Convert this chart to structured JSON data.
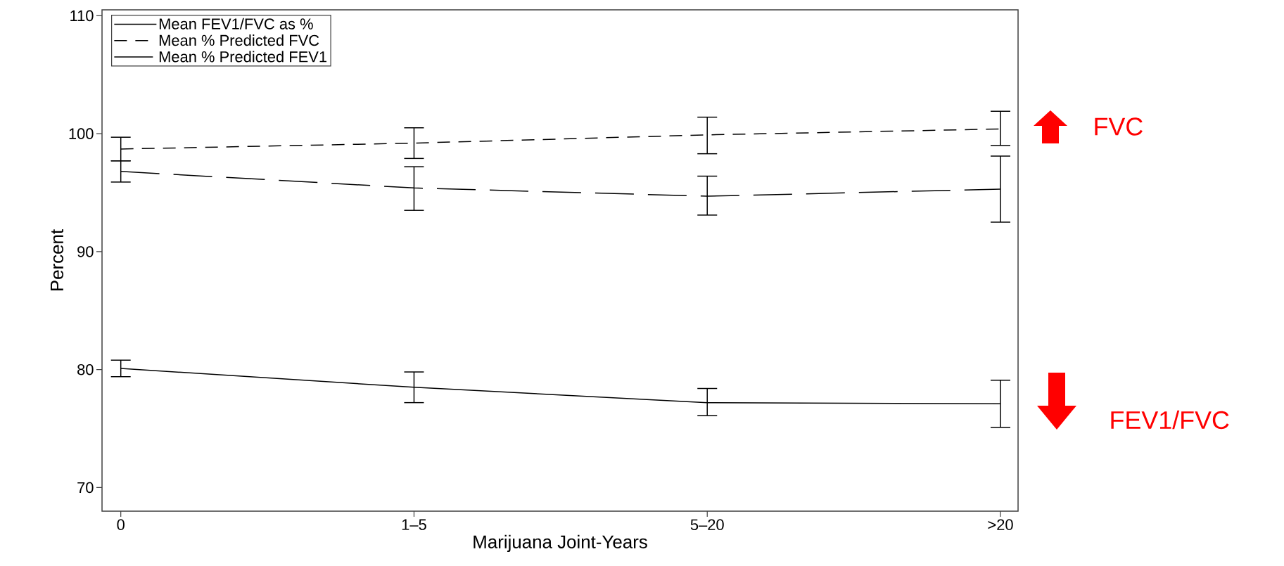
{
  "chart_data": {
    "type": "line",
    "xlabel": "Marijuana Joint-Years",
    "ylabel": "Percent",
    "categories": [
      "0",
      "1–5",
      "5–20",
      ">20"
    ],
    "series": [
      {
        "name": "Mean FEV1/FVC as %",
        "color": "#000000",
        "line_style": "solid",
        "values": [
          80.1,
          78.5,
          77.2,
          77.1
        ],
        "errors": [
          [
            79.4,
            80.8
          ],
          [
            77.2,
            79.8
          ],
          [
            76.1,
            78.4
          ],
          [
            75.1,
            79.1
          ]
        ]
      },
      {
        "name": "Mean % Predicted FVC",
        "color": "#000000",
        "line_style": "dashed",
        "values": [
          98.7,
          99.2,
          99.9,
          100.4
        ],
        "errors": [
          [
            97.7,
            99.7
          ],
          [
            97.9,
            100.5
          ],
          [
            98.3,
            101.4
          ],
          [
            99.0,
            101.9
          ]
        ]
      },
      {
        "name": "Mean % Predicted FEV1",
        "color": "#000000",
        "line_style": "dashed",
        "values": [
          96.8,
          95.4,
          94.7,
          95.3
        ],
        "errors": [
          [
            95.9,
            97.7
          ],
          [
            93.5,
            97.2
          ],
          [
            93.1,
            96.4
          ],
          [
            92.5,
            98.1
          ]
        ]
      }
    ],
    "ylim": [
      68,
      110.5
    ],
    "yticks": [
      70,
      80,
      90,
      100,
      110
    ],
    "grid": false,
    "legend": "top left",
    "marker": "none",
    "annotations": [
      "FVC",
      "FEV1/FVC"
    ]
  }
}
